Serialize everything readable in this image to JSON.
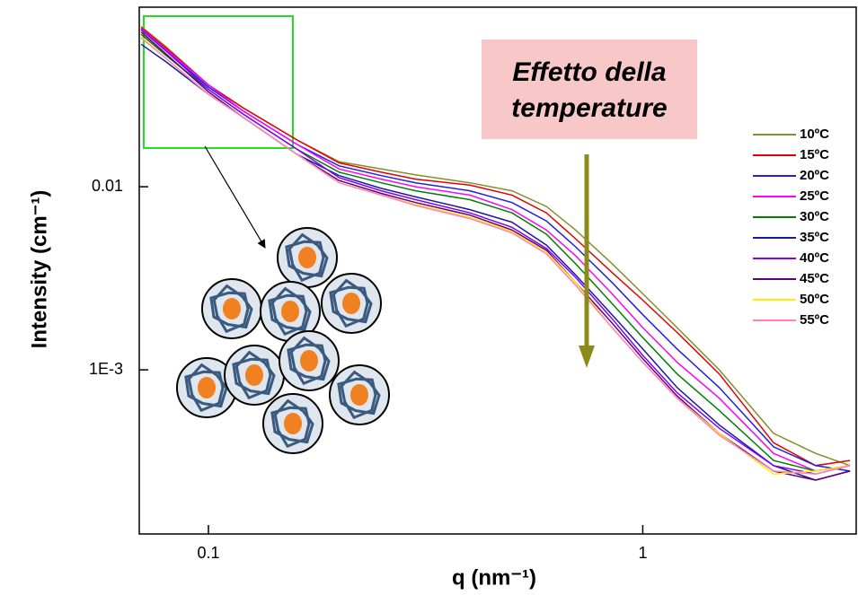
{
  "chart_data": {
    "type": "line",
    "x_label": "q (nm⁻¹)",
    "y_label": "Intensity (cm⁻¹)",
    "annotation": [
      "Effetto della",
      "temperature"
    ],
    "log_x": true,
    "log_y": true,
    "legend": "right",
    "xlim": [
      0.0693,
      3.1
    ],
    "ylim": [
      0.000127,
      0.0956
    ],
    "xticks": [
      0.1,
      1
    ],
    "yticks": [
      0.01,
      {
        "value": 0.001,
        "label": "1E-3"
      }
    ],
    "x": [
      0.07,
      0.08,
      0.1,
      0.12,
      0.16,
      0.2,
      0.25,
      0.3,
      0.4,
      0.5,
      0.6,
      0.7,
      0.85,
      1,
      1.2,
      1.5,
      2,
      2.5,
      3
    ],
    "series": [
      {
        "name": "10ºC",
        "color": "#8b8b2a",
        "values": [
          0.075,
          0.058,
          0.036,
          0.027,
          0.018,
          0.0137,
          0.0125,
          0.0116,
          0.0105,
          0.0095,
          0.0078,
          0.0058,
          0.0038,
          0.0026,
          0.0017,
          0.001,
          0.00045,
          0.00035,
          0.0003
        ]
      },
      {
        "name": "15ºC",
        "color": "#e00000",
        "values": [
          0.074,
          0.057,
          0.036,
          0.027,
          0.018,
          0.0135,
          0.012,
          0.011,
          0.0102,
          0.009,
          0.0072,
          0.0052,
          0.0034,
          0.0024,
          0.0016,
          0.00095,
          0.0004,
          0.0003,
          0.00032
        ]
      },
      {
        "name": "20ºC",
        "color": "#2020e0",
        "values": [
          0.072,
          0.055,
          0.035,
          0.026,
          0.017,
          0.013,
          0.0115,
          0.0105,
          0.0095,
          0.0082,
          0.0065,
          0.0047,
          0.003,
          0.002,
          0.0013,
          0.0008,
          0.00038,
          0.0003,
          0.00028
        ]
      },
      {
        "name": "25ºC",
        "color": "#ff00ff",
        "values": [
          0.073,
          0.056,
          0.036,
          0.026,
          0.017,
          0.0125,
          0.011,
          0.01,
          0.009,
          0.0075,
          0.0058,
          0.0042,
          0.0026,
          0.0017,
          0.0011,
          0.0007,
          0.00035,
          0.00028,
          0.0003
        ]
      },
      {
        "name": "30ºC",
        "color": "#008000",
        "values": [
          0.068,
          0.052,
          0.034,
          0.025,
          0.016,
          0.012,
          0.0105,
          0.0095,
          0.0085,
          0.0072,
          0.0055,
          0.0038,
          0.0023,
          0.0015,
          0.00095,
          0.0006,
          0.00032,
          0.00028,
          0.0003
        ]
      },
      {
        "name": "35ºC",
        "color": "#1a1aa0",
        "values": [
          0.06,
          0.048,
          0.032,
          0.024,
          0.015,
          0.0115,
          0.0098,
          0.0088,
          0.0075,
          0.0064,
          0.0048,
          0.0033,
          0.002,
          0.0013,
          0.0008,
          0.0005,
          0.0003,
          0.00025,
          0.00028
        ]
      },
      {
        "name": "40ºC",
        "color": "#8000ff",
        "values": [
          0.072,
          0.055,
          0.034,
          0.025,
          0.016,
          0.0112,
          0.0095,
          0.0085,
          0.0072,
          0.006,
          0.0046,
          0.0032,
          0.0019,
          0.0012,
          0.00075,
          0.00048,
          0.0003,
          0.00027,
          0.0003
        ]
      },
      {
        "name": "45ºC",
        "color": "#600080",
        "values": [
          0.07,
          0.053,
          0.033,
          0.024,
          0.015,
          0.0108,
          0.0092,
          0.0082,
          0.007,
          0.0058,
          0.0045,
          0.003,
          0.0018,
          0.00115,
          0.00072,
          0.00045,
          0.00028,
          0.00025,
          0.00028
        ]
      },
      {
        "name": "50ºC",
        "color": "#ffee00",
        "values": [
          0.066,
          0.05,
          0.032,
          0.024,
          0.015,
          0.0105,
          0.009,
          0.008,
          0.0068,
          0.0057,
          0.0044,
          0.003,
          0.0017,
          0.0011,
          0.0007,
          0.00045,
          0.00027,
          0.00028,
          0.0003
        ]
      },
      {
        "name": "55ºC",
        "color": "#ff80c0",
        "values": [
          0.065,
          0.05,
          0.032,
          0.024,
          0.015,
          0.0105,
          0.009,
          0.0079,
          0.0067,
          0.0056,
          0.0043,
          0.0029,
          0.0017,
          0.0011,
          0.0007,
          0.00044,
          0.00028,
          0.00027,
          0.0003
        ]
      }
    ]
  }
}
